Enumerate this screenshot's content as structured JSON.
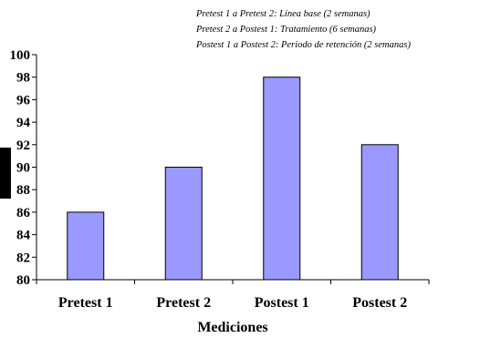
{
  "notes": [
    "Pretest 1 a Pretest 2: Línea base (2 semanas)",
    "Pretest 2 a Postest 1: Tratamiento (6 semanas)",
    "Postest 1 a Postest 2: Periodo de retención (2 semanas)"
  ],
  "colors": {
    "bar_fill": "#9999ff",
    "bar_stroke": "#000000",
    "side_block": "#000000"
  },
  "chart_data": {
    "type": "bar",
    "categories": [
      "Pretest 1",
      "Pretest 2",
      "Postest 1",
      "Postest 2"
    ],
    "values": [
      86,
      90,
      98,
      92
    ],
    "xlabel": "Mediciones",
    "ylabel": "",
    "ylim": [
      80,
      100
    ],
    "yticks": [
      80,
      82,
      84,
      86,
      88,
      90,
      92,
      94,
      96,
      98,
      100
    ],
    "grid": false,
    "legend": "none"
  }
}
